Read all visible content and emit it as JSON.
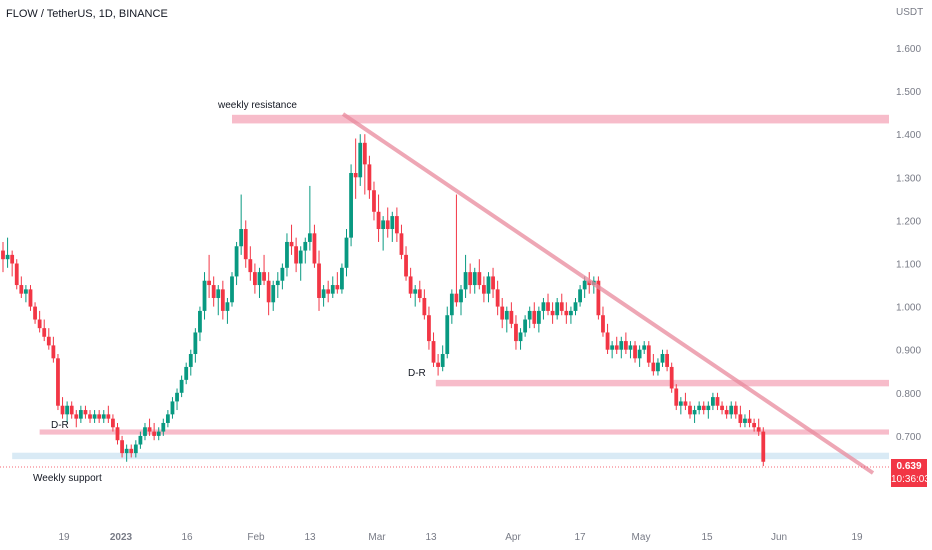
{
  "header": {
    "symbol_title": "FLOW / TetherUS, 1D, BINANCE"
  },
  "price_axis": {
    "currency": "USDT"
  },
  "last_price": {
    "value": "0.639",
    "countdown": "10:36:03",
    "color": "#f23645"
  },
  "colors": {
    "up": "#089981",
    "down": "#f23645",
    "zone": "#f4a6b8",
    "trendline": "#e88a9c",
    "support_zone": "#cfe5f3"
  },
  "chart_data": {
    "type": "candlestick",
    "title": "FLOW / TetherUS, 1D, BINANCE",
    "y_unit": "USDT",
    "ylim": [
      0.58,
      1.66
    ],
    "y_ticks": [
      "1.600",
      "1.500",
      "1.400",
      "1.300",
      "1.200",
      "1.100",
      "1.000",
      "0.900",
      "0.800",
      "0.700"
    ],
    "x_ticks": [
      "19",
      "2023",
      "16",
      "Feb",
      "13",
      "Mar",
      "13",
      "Apr",
      "17",
      "May",
      "15",
      "Jun",
      "19"
    ],
    "grid": false,
    "annotations": [
      {
        "type": "zone",
        "label": "weekly resistance",
        "y_from": 1.425,
        "y_to": 1.445,
        "from_day": 100,
        "to_day": 390
      },
      {
        "type": "zone",
        "label": "",
        "y_from": 0.815,
        "y_to": 0.83,
        "from_day": 189,
        "to_day": 390
      },
      {
        "type": "zone",
        "label": "",
        "y_from": 0.703,
        "y_to": 0.715,
        "from_day": 16,
        "to_day": 390
      },
      {
        "type": "zone",
        "label": "Weekly support",
        "y_from": 0.646,
        "y_to": 0.661,
        "from_day": 4,
        "to_day": 390
      },
      {
        "type": "trendline",
        "label": "",
        "from": [
          158,
          1.45
        ],
        "to": [
          385,
          0.63
        ]
      },
      {
        "type": "marker",
        "label": "D-R",
        "day": 13,
        "y": 0.705
      },
      {
        "type": "marker",
        "label": "D-R",
        "day": 184,
        "y": 0.815
      }
    ],
    "candles_note": "daily OHLC, approximate from Dec 2022 to Jun 2023",
    "ohlc": [
      [
        1.13,
        1.15,
        1.08,
        1.11
      ],
      [
        1.11,
        1.16,
        1.09,
        1.12
      ],
      [
        1.12,
        1.13,
        1.07,
        1.1
      ],
      [
        1.1,
        1.11,
        1.04,
        1.05
      ],
      [
        1.05,
        1.07,
        1.02,
        1.03
      ],
      [
        1.03,
        1.05,
        1.01,
        1.04
      ],
      [
        1.04,
        1.05,
        0.99,
        1.0
      ],
      [
        1.0,
        1.01,
        0.96,
        0.97
      ],
      [
        0.97,
        0.99,
        0.94,
        0.95
      ],
      [
        0.95,
        0.97,
        0.92,
        0.93
      ],
      [
        0.93,
        0.95,
        0.9,
        0.91
      ],
      [
        0.91,
        0.93,
        0.87,
        0.88
      ],
      [
        0.88,
        0.89,
        0.76,
        0.77
      ],
      [
        0.77,
        0.79,
        0.74,
        0.75
      ],
      [
        0.75,
        0.78,
        0.73,
        0.77
      ],
      [
        0.77,
        0.78,
        0.74,
        0.75
      ],
      [
        0.75,
        0.76,
        0.72,
        0.74
      ],
      [
        0.74,
        0.77,
        0.73,
        0.76
      ],
      [
        0.76,
        0.77,
        0.74,
        0.75
      ],
      [
        0.75,
        0.76,
        0.73,
        0.74
      ],
      [
        0.74,
        0.76,
        0.73,
        0.75
      ],
      [
        0.75,
        0.76,
        0.73,
        0.74
      ],
      [
        0.74,
        0.76,
        0.73,
        0.75
      ],
      [
        0.75,
        0.77,
        0.73,
        0.74
      ],
      [
        0.74,
        0.75,
        0.71,
        0.72
      ],
      [
        0.72,
        0.73,
        0.68,
        0.69
      ],
      [
        0.69,
        0.7,
        0.65,
        0.66
      ],
      [
        0.66,
        0.68,
        0.64,
        0.67
      ],
      [
        0.67,
        0.68,
        0.65,
        0.66
      ],
      [
        0.66,
        0.69,
        0.65,
        0.68
      ],
      [
        0.68,
        0.71,
        0.67,
        0.7
      ],
      [
        0.7,
        0.73,
        0.69,
        0.72
      ],
      [
        0.72,
        0.74,
        0.7,
        0.71
      ],
      [
        0.71,
        0.73,
        0.69,
        0.7
      ],
      [
        0.7,
        0.72,
        0.69,
        0.71
      ],
      [
        0.71,
        0.74,
        0.7,
        0.73
      ],
      [
        0.73,
        0.76,
        0.72,
        0.75
      ],
      [
        0.75,
        0.79,
        0.74,
        0.78
      ],
      [
        0.78,
        0.81,
        0.76,
        0.8
      ],
      [
        0.8,
        0.84,
        0.79,
        0.83
      ],
      [
        0.83,
        0.87,
        0.82,
        0.86
      ],
      [
        0.86,
        0.9,
        0.84,
        0.89
      ],
      [
        0.89,
        0.95,
        0.87,
        0.94
      ],
      [
        0.94,
        1.0,
        0.92,
        0.99
      ],
      [
        0.99,
        1.08,
        0.97,
        1.06
      ],
      [
        1.06,
        1.12,
        1.02,
        1.05
      ],
      [
        1.05,
        1.07,
        1.0,
        1.02
      ],
      [
        1.02,
        1.05,
        0.98,
        1.04
      ],
      [
        1.04,
        1.06,
        0.97,
        0.99
      ],
      [
        0.99,
        1.02,
        0.96,
        1.01
      ],
      [
        1.01,
        1.08,
        1.0,
        1.07
      ],
      [
        1.07,
        1.15,
        1.05,
        1.14
      ],
      [
        1.14,
        1.26,
        1.12,
        1.18
      ],
      [
        1.18,
        1.2,
        1.09,
        1.11
      ],
      [
        1.11,
        1.14,
        1.06,
        1.08
      ],
      [
        1.08,
        1.1,
        1.03,
        1.05
      ],
      [
        1.05,
        1.09,
        1.02,
        1.08
      ],
      [
        1.08,
        1.12,
        1.05,
        1.06
      ],
      [
        1.06,
        1.08,
        0.98,
        1.01
      ],
      [
        1.01,
        1.06,
        0.99,
        1.05
      ],
      [
        1.05,
        1.08,
        1.02,
        1.06
      ],
      [
        1.06,
        1.1,
        1.04,
        1.09
      ],
      [
        1.09,
        1.17,
        1.07,
        1.15
      ],
      [
        1.15,
        1.19,
        1.12,
        1.14
      ],
      [
        1.14,
        1.16,
        1.08,
        1.1
      ],
      [
        1.1,
        1.14,
        1.06,
        1.13
      ],
      [
        1.13,
        1.16,
        1.1,
        1.15
      ],
      [
        1.15,
        1.28,
        1.13,
        1.17
      ],
      [
        1.17,
        1.19,
        1.09,
        1.1
      ],
      [
        1.1,
        1.13,
        0.99,
        1.02
      ],
      [
        1.02,
        1.05,
        1.0,
        1.04
      ],
      [
        1.04,
        1.06,
        1.01,
        1.03
      ],
      [
        1.03,
        1.07,
        1.02,
        1.05
      ],
      [
        1.05,
        1.08,
        1.03,
        1.04
      ],
      [
        1.04,
        1.1,
        1.03,
        1.09
      ],
      [
        1.09,
        1.18,
        1.07,
        1.16
      ],
      [
        1.16,
        1.33,
        1.14,
        1.31
      ],
      [
        1.31,
        1.39,
        1.25,
        1.3
      ],
      [
        1.3,
        1.4,
        1.28,
        1.38
      ],
      [
        1.38,
        1.4,
        1.26,
        1.33
      ],
      [
        1.33,
        1.35,
        1.25,
        1.27
      ],
      [
        1.27,
        1.29,
        1.2,
        1.22
      ],
      [
        1.22,
        1.26,
        1.15,
        1.18
      ],
      [
        1.18,
        1.21,
        1.13,
        1.2
      ],
      [
        1.2,
        1.23,
        1.16,
        1.18
      ],
      [
        1.18,
        1.22,
        1.15,
        1.21
      ],
      [
        1.21,
        1.23,
        1.15,
        1.17
      ],
      [
        1.17,
        1.19,
        1.11,
        1.12
      ],
      [
        1.12,
        1.14,
        1.06,
        1.07
      ],
      [
        1.07,
        1.09,
        1.02,
        1.03
      ],
      [
        1.03,
        1.05,
        1.0,
        1.04
      ],
      [
        1.04,
        1.06,
        1.01,
        1.02
      ],
      [
        1.02,
        1.04,
        0.97,
        0.98
      ],
      [
        0.98,
        1.0,
        0.9,
        0.92
      ],
      [
        0.92,
        0.94,
        0.86,
        0.87
      ],
      [
        0.87,
        0.89,
        0.84,
        0.86
      ],
      [
        0.86,
        0.91,
        0.85,
        0.89
      ],
      [
        0.89,
        1.0,
        0.88,
        0.98
      ],
      [
        0.98,
        1.04,
        0.96,
        1.03
      ],
      [
        1.03,
        1.26,
        1.0,
        1.01
      ],
      [
        1.01,
        1.05,
        0.98,
        1.04
      ],
      [
        1.04,
        1.12,
        1.02,
        1.08
      ],
      [
        1.08,
        1.1,
        1.03,
        1.05
      ],
      [
        1.05,
        1.09,
        1.03,
        1.08
      ],
      [
        1.08,
        1.11,
        1.04,
        1.05
      ],
      [
        1.05,
        1.07,
        1.01,
        1.03
      ],
      [
        1.03,
        1.08,
        1.01,
        1.07
      ],
      [
        1.07,
        1.09,
        1.02,
        1.04
      ],
      [
        1.04,
        1.06,
        0.98,
        1.0
      ],
      [
        1.0,
        1.02,
        0.95,
        0.97
      ],
      [
        0.97,
        1.0,
        0.94,
        0.99
      ],
      [
        0.99,
        1.01,
        0.95,
        0.96
      ],
      [
        0.96,
        0.98,
        0.9,
        0.92
      ],
      [
        0.92,
        0.95,
        0.9,
        0.94
      ],
      [
        0.94,
        0.98,
        0.93,
        0.97
      ],
      [
        0.97,
        1.0,
        0.95,
        0.99
      ],
      [
        0.99,
        1.01,
        0.95,
        0.96
      ],
      [
        0.96,
        1.0,
        0.94,
        0.99
      ],
      [
        0.99,
        1.02,
        0.97,
        1.01
      ],
      [
        1.01,
        1.03,
        0.98,
        0.99
      ],
      [
        0.99,
        1.01,
        0.96,
        0.98
      ],
      [
        0.98,
        1.02,
        0.97,
        1.01
      ],
      [
        1.01,
        1.03,
        0.98,
        0.99
      ],
      [
        0.99,
        1.01,
        0.96,
        0.98
      ],
      [
        0.98,
        1.0,
        0.96,
        0.99
      ],
      [
        0.99,
        1.02,
        0.98,
        1.01
      ],
      [
        1.01,
        1.05,
        1.0,
        1.04
      ],
      [
        1.04,
        1.07,
        1.02,
        1.06
      ],
      [
        1.06,
        1.08,
        1.03,
        1.05
      ],
      [
        1.05,
        1.07,
        1.03,
        1.06
      ],
      [
        1.06,
        1.07,
        0.97,
        0.98
      ],
      [
        0.98,
        1.0,
        0.93,
        0.94
      ],
      [
        0.94,
        0.96,
        0.89,
        0.9
      ],
      [
        0.9,
        0.92,
        0.88,
        0.91
      ],
      [
        0.91,
        0.93,
        0.89,
        0.9
      ],
      [
        0.9,
        0.93,
        0.88,
        0.92
      ],
      [
        0.92,
        0.94,
        0.89,
        0.9
      ],
      [
        0.9,
        0.92,
        0.88,
        0.91
      ],
      [
        0.91,
        0.92,
        0.87,
        0.88
      ],
      [
        0.88,
        0.91,
        0.86,
        0.9
      ],
      [
        0.9,
        0.92,
        0.89,
        0.91
      ],
      [
        0.91,
        0.92,
        0.86,
        0.87
      ],
      [
        0.87,
        0.89,
        0.84,
        0.85
      ],
      [
        0.85,
        0.88,
        0.84,
        0.87
      ],
      [
        0.87,
        0.9,
        0.86,
        0.89
      ],
      [
        0.89,
        0.9,
        0.85,
        0.86
      ],
      [
        0.86,
        0.87,
        0.8,
        0.81
      ],
      [
        0.81,
        0.82,
        0.76,
        0.77
      ],
      [
        0.77,
        0.79,
        0.75,
        0.78
      ],
      [
        0.78,
        0.8,
        0.76,
        0.77
      ],
      [
        0.77,
        0.78,
        0.74,
        0.75
      ],
      [
        0.75,
        0.77,
        0.73,
        0.76
      ],
      [
        0.76,
        0.78,
        0.75,
        0.77
      ],
      [
        0.77,
        0.78,
        0.75,
        0.76
      ],
      [
        0.76,
        0.78,
        0.74,
        0.77
      ],
      [
        0.77,
        0.8,
        0.76,
        0.79
      ],
      [
        0.79,
        0.8,
        0.76,
        0.77
      ],
      [
        0.77,
        0.78,
        0.75,
        0.76
      ],
      [
        0.76,
        0.77,
        0.74,
        0.75
      ],
      [
        0.75,
        0.78,
        0.74,
        0.77
      ],
      [
        0.77,
        0.78,
        0.74,
        0.75
      ],
      [
        0.75,
        0.77,
        0.72,
        0.73
      ],
      [
        0.73,
        0.75,
        0.72,
        0.74
      ],
      [
        0.74,
        0.76,
        0.72,
        0.73
      ],
      [
        0.73,
        0.74,
        0.71,
        0.72
      ],
      [
        0.72,
        0.74,
        0.7,
        0.71
      ],
      [
        0.71,
        0.72,
        0.63,
        0.64
      ]
    ]
  }
}
